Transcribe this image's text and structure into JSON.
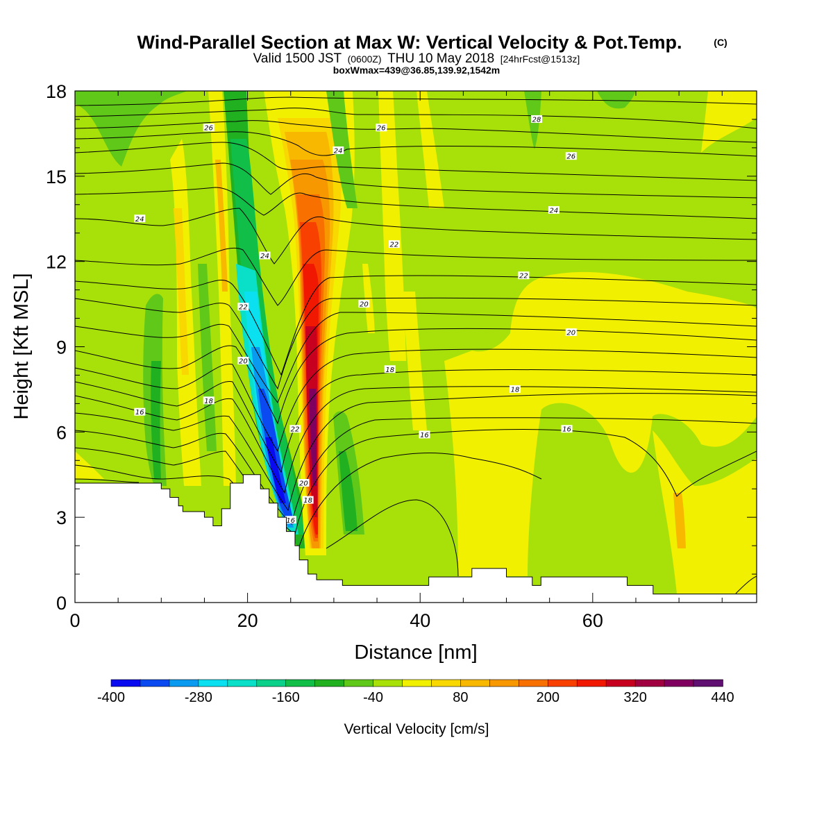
{
  "titles": {
    "main": "Wind-Parallel Section at Max W: Vertical Velocity & Pot.Temp.",
    "copyright": "(C)",
    "valid_prefix": "Valid 1500 JST",
    "valid_z": "(0600Z)",
    "valid_date": "THU 10 May 2018",
    "valid_fcst": "[24hrFcst@1513z]",
    "box_info": "boxWmax=439@36.85,139.92,1542m"
  },
  "chart_data": {
    "type": "heatmap",
    "xlabel": "Distance [nm]",
    "ylabel": "Height [Kft MSL]",
    "xlim": [
      0,
      79
    ],
    "ylim": [
      0,
      18
    ],
    "x_ticks": [
      0,
      20,
      40,
      60
    ],
    "y_ticks": [
      0,
      3,
      6,
      9,
      12,
      15,
      18
    ],
    "colorbar": {
      "title": "Vertical Velocity [cm/s]",
      "levels": [
        -400,
        -360,
        -320,
        -280,
        -240,
        -200,
        -160,
        -120,
        -80,
        -40,
        0,
        40,
        80,
        120,
        160,
        200,
        240,
        280,
        320,
        360,
        400,
        440
      ],
      "tick_labels": [
        "-400",
        "-280",
        "-160",
        "-40",
        "80",
        "200",
        "320",
        "440"
      ],
      "colors": [
        "#0a0af0",
        "#0a4af0",
        "#0a9af0",
        "#0ae0f0",
        "#0ae0c8",
        "#0ad08a",
        "#10be48",
        "#20b020",
        "#60c818",
        "#a8e00a",
        "#f0f000",
        "#f8d800",
        "#f8b800",
        "#f89800",
        "#f87000",
        "#f84000",
        "#f01800",
        "#c80020",
        "#a00040",
        "#800060",
        "#601070"
      ]
    },
    "terrain_profile": [
      [
        0,
        4.2
      ],
      [
        10,
        4.2
      ],
      [
        10,
        4.0
      ],
      [
        11,
        4.0
      ],
      [
        11,
        3.7
      ],
      [
        12,
        3.7
      ],
      [
        12,
        3.4
      ],
      [
        12.5,
        3.4
      ],
      [
        12.5,
        3.2
      ],
      [
        15,
        3.2
      ],
      [
        15,
        3.0
      ],
      [
        16,
        3.0
      ],
      [
        16,
        2.7
      ],
      [
        17,
        2.7
      ],
      [
        17,
        3.3
      ],
      [
        18,
        3.3
      ],
      [
        18,
        4.2
      ],
      [
        19.5,
        4.2
      ],
      [
        19.5,
        4.5
      ],
      [
        21.5,
        4.5
      ],
      [
        21.5,
        4.0
      ],
      [
        22.5,
        4.0
      ],
      [
        22.5,
        3.5
      ],
      [
        23.5,
        3.5
      ],
      [
        23.5,
        3.0
      ],
      [
        24.5,
        3.0
      ],
      [
        24.5,
        2.5
      ],
      [
        25.5,
        2.5
      ],
      [
        25.5,
        2.0
      ],
      [
        26,
        2.0
      ],
      [
        26,
        1.5
      ],
      [
        27,
        1.5
      ],
      [
        27,
        1.0
      ],
      [
        28,
        1.0
      ],
      [
        28,
        0.8
      ],
      [
        31,
        0.8
      ],
      [
        31,
        0.6
      ],
      [
        41,
        0.6
      ],
      [
        41,
        0.9
      ],
      [
        46,
        0.9
      ],
      [
        46,
        1.2
      ],
      [
        50,
        1.2
      ],
      [
        50,
        0.9
      ],
      [
        53,
        0.9
      ],
      [
        53,
        0.6
      ],
      [
        54,
        0.6
      ],
      [
        54,
        0.9
      ],
      [
        64,
        0.9
      ],
      [
        64,
        0.6
      ],
      [
        67,
        0.6
      ],
      [
        67,
        0.3
      ],
      [
        79,
        0.3
      ]
    ],
    "contour_labels": [
      {
        "text": "26",
        "x": 15.5,
        "y": 16.7
      },
      {
        "text": "26",
        "x": 35.5,
        "y": 16.7
      },
      {
        "text": "28",
        "x": 53.5,
        "y": 17.0
      },
      {
        "text": "26",
        "x": 57.5,
        "y": 15.7
      },
      {
        "text": "24",
        "x": 30.5,
        "y": 15.9
      },
      {
        "text": "24",
        "x": 7.5,
        "y": 13.5
      },
      {
        "text": "24",
        "x": 55.5,
        "y": 13.8
      },
      {
        "text": "22",
        "x": 37.0,
        "y": 12.6
      },
      {
        "text": "24",
        "x": 22.0,
        "y": 12.2
      },
      {
        "text": "22",
        "x": 52.0,
        "y": 11.5
      },
      {
        "text": "22",
        "x": 19.5,
        "y": 10.4
      },
      {
        "text": "20",
        "x": 33.5,
        "y": 10.5
      },
      {
        "text": "20",
        "x": 57.5,
        "y": 9.5
      },
      {
        "text": "20",
        "x": 19.5,
        "y": 8.5
      },
      {
        "text": "18",
        "x": 36.5,
        "y": 8.2
      },
      {
        "text": "18",
        "x": 51.0,
        "y": 7.5
      },
      {
        "text": "16",
        "x": 7.5,
        "y": 6.7
      },
      {
        "text": "18",
        "x": 15.5,
        "y": 7.1
      },
      {
        "text": "22",
        "x": 25.5,
        "y": 6.1
      },
      {
        "text": "16",
        "x": 40.5,
        "y": 5.9
      },
      {
        "text": "16",
        "x": 57.0,
        "y": 6.1
      },
      {
        "text": "20",
        "x": 26.5,
        "y": 4.2
      },
      {
        "text": "18",
        "x": 27.0,
        "y": 3.6
      },
      {
        "text": "16",
        "x": 25.0,
        "y": 2.9
      }
    ]
  }
}
